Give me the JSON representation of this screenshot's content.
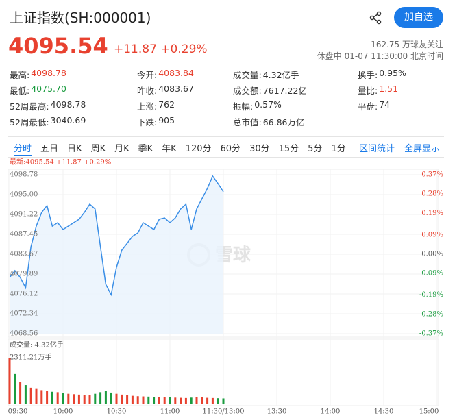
{
  "header": {
    "title": "上证指数(SH:000001)",
    "button": "加自选"
  },
  "quote": {
    "price": "4095.54",
    "change": "+11.87 +0.29%",
    "followers": "162.75 万球友关注",
    "status": "休盘中 01-07 11:30:00 北京时间"
  },
  "stats": [
    [
      {
        "label": "最高:",
        "value": "4098.78",
        "color": "#e8412f"
      },
      {
        "label": "今开:",
        "value": "4083.84",
        "color": "#e8412f"
      },
      {
        "label": "成交量:",
        "value": "4.32亿手"
      },
      {
        "label": "换手:",
        "value": "0.95%"
      }
    ],
    [
      {
        "label": "最低:",
        "value": "4075.70",
        "color": "#1a9c3f"
      },
      {
        "label": "昨收:",
        "value": "4083.67"
      },
      {
        "label": "成交额:",
        "value": "7617.22亿"
      },
      {
        "label": "量比:",
        "value": "1.51",
        "color": "#e8412f"
      }
    ],
    [
      {
        "label": "52周最高:",
        "value": "4098.78"
      },
      {
        "label": "上涨:",
        "value": "762"
      },
      {
        "label": "振幅:",
        "value": "0.57%"
      },
      {
        "label": "平盘:",
        "value": "74"
      }
    ],
    [
      {
        "label": "52周最低:",
        "value": "3040.69"
      },
      {
        "label": "下跌:",
        "value": "905"
      },
      {
        "label": "总市值:",
        "value": "66.86万亿"
      }
    ]
  ],
  "tabs": [
    "分时",
    "五日",
    "日K",
    "周K",
    "月K",
    "季K",
    "年K",
    "120分",
    "60分",
    "30分",
    "15分",
    "5分",
    "1分"
  ],
  "tab_actions": [
    "区间统计",
    "全屏显示"
  ],
  "watermark": "雪球",
  "chart_data": [
    {
      "type": "line",
      "title": "最新:4095.54 +11.87 +0.29%",
      "color": "#3a8ee6",
      "values": [
        4079.24,
        4080.54,
        4079.24,
        4077.29,
        4085.1,
        4089.01,
        4091.62,
        4092.92,
        4089.01,
        4089.66,
        4088.36,
        4089.01,
        4089.66,
        4090.31,
        4091.62,
        4093.18,
        4092.27,
        4085.1,
        4077.94,
        4075.98,
        4081.19,
        4084.45,
        4085.75,
        4087.06,
        4087.71,
        4089.66,
        4089.01,
        4088.36,
        4090.31,
        4090.57,
        4089.66,
        4090.57,
        4092.27,
        4093.18,
        4088.36,
        4092.27,
        4094.22,
        4096.17,
        4098.52,
        4097.09,
        4095.54
      ],
      "ylim": [
        4068.56,
        4098.78
      ],
      "yticks": [
        4098.78,
        {
          "value": 4095.0,
          "label": "4095.00"
        },
        4091.22,
        4087.45,
        4083.67,
        4079.89,
        4076.12,
        4072.34,
        4068.56
      ],
      "y2lim": [
        -0.37,
        0.37
      ],
      "y2ticks": [
        {
          "value": 0.37,
          "label": "0.37%"
        },
        {
          "value": 0.28,
          "label": "0.28%"
        },
        {
          "value": 0.19,
          "label": "0.19%"
        },
        {
          "value": 0.09,
          "label": "0.09%"
        },
        {
          "value": 0.0,
          "label": "0.00%"
        },
        {
          "value": -0.09,
          "label": "-0.09%"
        },
        {
          "value": -0.19,
          "label": "-0.19%"
        },
        {
          "value": -0.28,
          "label": "-0.28%"
        },
        {
          "value": -0.37,
          "label": "-0.37%"
        }
      ]
    },
    {
      "type": "bar",
      "title": "成交量: 4.32亿手",
      "values": [
        2311.21,
        1500,
        1100,
        950,
        820,
        760,
        700,
        650,
        620,
        600,
        560,
        520,
        500,
        480,
        470,
        450,
        520,
        600,
        650,
        580,
        520,
        480,
        450,
        420,
        400,
        390,
        380,
        370,
        360,
        350,
        340,
        330,
        320,
        310,
        330,
        350,
        340,
        320,
        310,
        300,
        290
      ],
      "colors": [
        "#e8412f",
        "#1a9c3f",
        "#e8412f",
        "#1a9c3f",
        "#e8412f",
        "#e8412f",
        "#e8412f",
        "#e8412f",
        "#1a9c3f",
        "#e8412f",
        "#1a9c3f",
        "#e8412f",
        "#e8412f",
        "#e8412f",
        "#e8412f",
        "#e8412f",
        "#1a9c3f",
        "#1a9c3f",
        "#1a9c3f",
        "#1a9c3f",
        "#e8412f",
        "#e8412f",
        "#e8412f",
        "#e8412f",
        "#e8412f",
        "#e8412f",
        "#1a9c3f",
        "#1a9c3f",
        "#e8412f",
        "#e8412f",
        "#1a9c3f",
        "#e8412f",
        "#e8412f",
        "#e8412f",
        "#1a9c3f",
        "#e8412f",
        "#e8412f",
        "#e8412f",
        "#e8412f",
        "#1a9c3f",
        "#1a9c3f"
      ],
      "ylim": [
        0,
        2311.21
      ],
      "yticks": [
        {
          "value": 2311.21,
          "label": "2311.21万手"
        }
      ],
      "x_labels": [
        "09:30",
        "10:00",
        "10:30",
        "11:00",
        "11:30/13:00",
        "13:30",
        "14:00",
        "14:30",
        "15:00"
      ]
    }
  ]
}
